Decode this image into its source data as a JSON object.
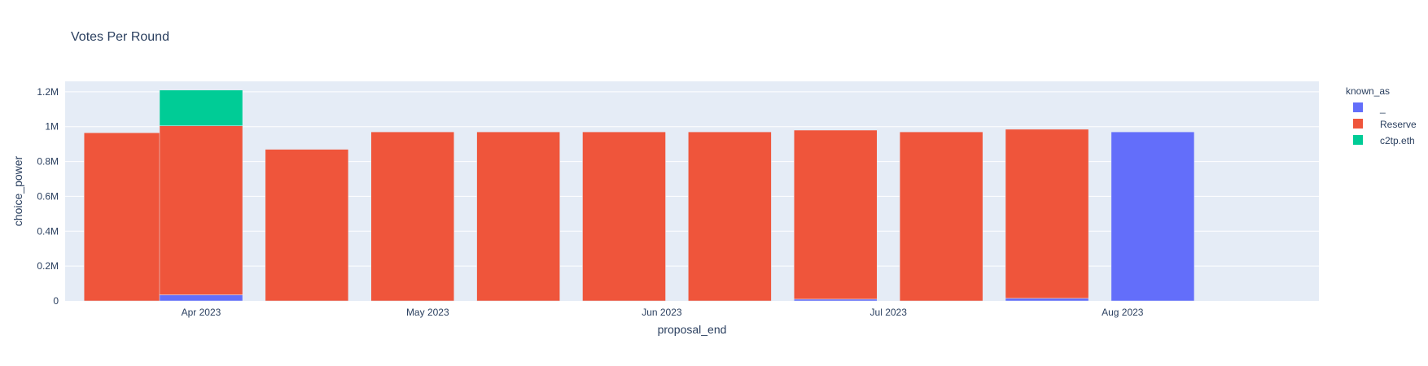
{
  "chart_data": {
    "type": "bar",
    "barmode": "stack",
    "title": "Votes Per Round",
    "xlabel": "proposal_end",
    "ylabel": "choice_power",
    "ylim": [
      0,
      1260000
    ],
    "y_ticks": [
      {
        "value": 0,
        "label": "0"
      },
      {
        "value": 200000,
        "label": "0.2M"
      },
      {
        "value": 400000,
        "label": "0.4M"
      },
      {
        "value": 600000,
        "label": "0.6M"
      },
      {
        "value": 800000,
        "label": "0.8M"
      },
      {
        "value": 1000000,
        "label": "1M"
      },
      {
        "value": 1200000,
        "label": "1.2M"
      }
    ],
    "xlim": [
      "2023-03-14",
      "2023-08-27"
    ],
    "x_ticks": [
      {
        "value": "2023-04-01",
        "label": "Apr 2023"
      },
      {
        "value": "2023-05-01",
        "label": "May 2023"
      },
      {
        "value": "2023-06-01",
        "label": "Jun 2023"
      },
      {
        "value": "2023-07-01",
        "label": "Jul 2023"
      },
      {
        "value": "2023-08-01",
        "label": "Aug 2023"
      }
    ],
    "bar_width_days": 11,
    "x": [
      "2023-03-22",
      "2023-04-01",
      "2023-04-15",
      "2023-04-29",
      "2023-05-13",
      "2023-05-27",
      "2023-06-10",
      "2023-06-24",
      "2023-07-08",
      "2023-07-22",
      "2023-08-05"
    ],
    "grid": true,
    "legend": {
      "title": "known_as",
      "placement": "right"
    },
    "series": [
      {
        "name": "_",
        "color": "#636efa",
        "values": [
          0,
          35000,
          0,
          0,
          0,
          0,
          0,
          10000,
          0,
          15000,
          970000
        ]
      },
      {
        "name": "Reserve",
        "color": "#ef553b",
        "values": [
          965000,
          970000,
          870000,
          970000,
          970000,
          970000,
          970000,
          970000,
          970000,
          970000,
          0
        ]
      },
      {
        "name": "c2tp.eth",
        "color": "#00cc96",
        "values": [
          0,
          205000,
          0,
          0,
          0,
          0,
          0,
          0,
          0,
          0,
          0
        ]
      }
    ]
  }
}
